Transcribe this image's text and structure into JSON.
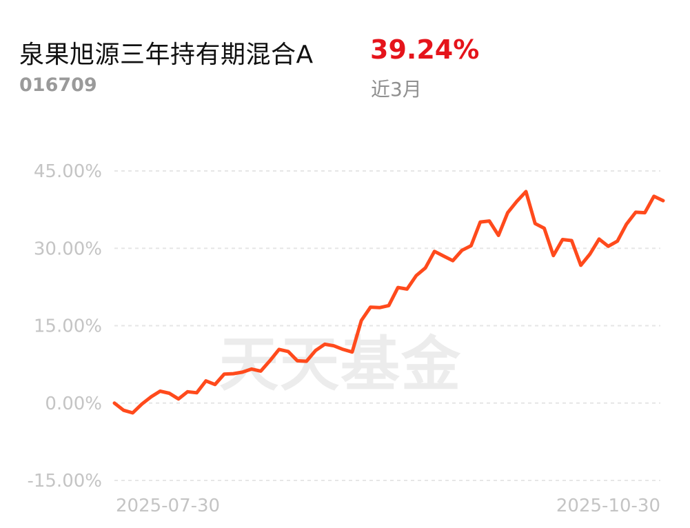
{
  "fund": {
    "name": "泉果旭源三年持有期混合A",
    "code": "016709",
    "return_value": "39.24%",
    "return_period": "近3月"
  },
  "watermark": "天天基金",
  "colors": {
    "line": "#ff4a1c",
    "return": "#e5141b",
    "grid": "#e6e6e6",
    "tick": "#c4c4c4"
  },
  "chart_data": {
    "type": "line",
    "title": "",
    "xlabel": "",
    "ylabel": "",
    "ylim": [
      -15,
      45
    ],
    "yticks": [
      45,
      30,
      15,
      0,
      -15
    ],
    "ytick_labels": [
      "45.00%",
      "30.00%",
      "15.00%",
      "0.00%",
      "-15.00%"
    ],
    "x_start_label": "2025-07-30",
    "x_end_label": "2025-10-30",
    "grid": true,
    "series": [
      {
        "values": [
          0.0,
          -1.4,
          -1.9,
          -0.2,
          1.2,
          2.3,
          1.9,
          0.8,
          2.2,
          2.0,
          4.3,
          3.6,
          5.6,
          5.7,
          6.0,
          6.6,
          6.2,
          8.2,
          10.4,
          10.0,
          8.2,
          8.1,
          10.2,
          11.4,
          11.1,
          10.4,
          9.9,
          16.0,
          18.6,
          18.5,
          18.9,
          22.4,
          22.1,
          24.7,
          26.2,
          29.4,
          28.5,
          27.6,
          29.6,
          30.5,
          35.1,
          35.3,
          32.5,
          36.9,
          39.1,
          41.0,
          34.8,
          33.9,
          28.6,
          31.7,
          31.5,
          26.7,
          28.9,
          31.8,
          30.4,
          31.4,
          34.7,
          37.0,
          36.9,
          40.1,
          39.24
        ]
      }
    ]
  }
}
